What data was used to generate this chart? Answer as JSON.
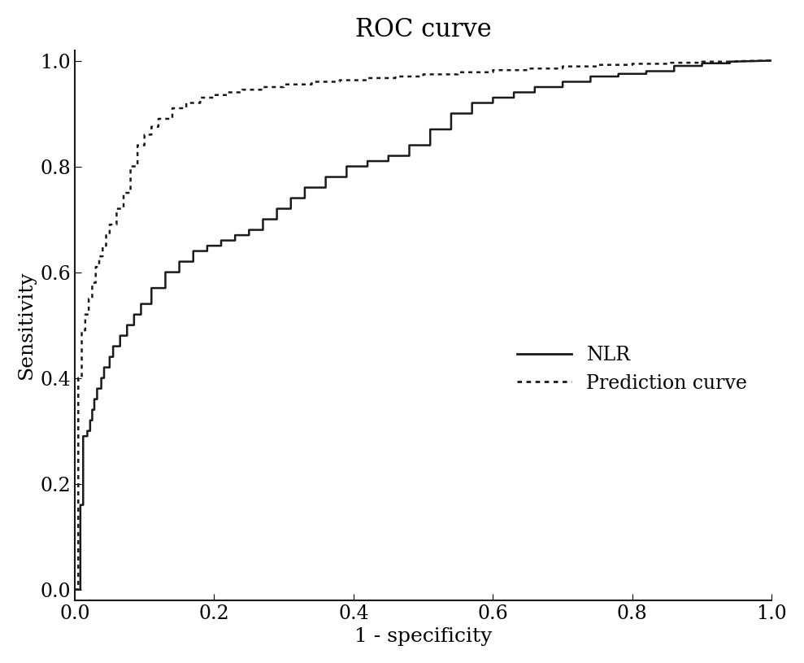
{
  "title": "ROC curve",
  "xlabel": "1 - specificity",
  "ylabel": "Sensitivity",
  "xlim": [
    0,
    1.0
  ],
  "ylim": [
    -0.02,
    1.02
  ],
  "title_fontsize": 22,
  "label_fontsize": 18,
  "tick_fontsize": 17,
  "legend_fontsize": 17,
  "background_color": "#ffffff",
  "curve_color": "#1a1a1a",
  "nlr_x": [
    0.0,
    0.008,
    0.008,
    0.012,
    0.012,
    0.018,
    0.018,
    0.022,
    0.022,
    0.025,
    0.025,
    0.028,
    0.028,
    0.032,
    0.032,
    0.038,
    0.038,
    0.042,
    0.042,
    0.05,
    0.05,
    0.055,
    0.055,
    0.065,
    0.065,
    0.075,
    0.075,
    0.085,
    0.085,
    0.095,
    0.095,
    0.11,
    0.11,
    0.13,
    0.13,
    0.15,
    0.15,
    0.17,
    0.17,
    0.19,
    0.19,
    0.21,
    0.21,
    0.23,
    0.23,
    0.25,
    0.25,
    0.27,
    0.27,
    0.29,
    0.29,
    0.31,
    0.31,
    0.33,
    0.33,
    0.36,
    0.36,
    0.39,
    0.39,
    0.42,
    0.42,
    0.45,
    0.45,
    0.48,
    0.48,
    0.51,
    0.51,
    0.54,
    0.54,
    0.57,
    0.57,
    0.6,
    0.6,
    0.63,
    0.63,
    0.66,
    0.66,
    0.7,
    0.7,
    0.74,
    0.74,
    0.78,
    0.78,
    0.82,
    0.82,
    0.86,
    0.86,
    0.9,
    0.9,
    0.94,
    0.94,
    1.0
  ],
  "nlr_y": [
    0.0,
    0.0,
    0.16,
    0.16,
    0.29,
    0.29,
    0.3,
    0.3,
    0.32,
    0.32,
    0.34,
    0.34,
    0.36,
    0.36,
    0.38,
    0.38,
    0.4,
    0.4,
    0.42,
    0.42,
    0.44,
    0.44,
    0.46,
    0.46,
    0.48,
    0.48,
    0.5,
    0.5,
    0.52,
    0.52,
    0.54,
    0.54,
    0.57,
    0.57,
    0.6,
    0.6,
    0.62,
    0.62,
    0.64,
    0.64,
    0.65,
    0.65,
    0.66,
    0.66,
    0.67,
    0.67,
    0.68,
    0.68,
    0.7,
    0.7,
    0.72,
    0.72,
    0.74,
    0.74,
    0.76,
    0.76,
    0.78,
    0.78,
    0.8,
    0.8,
    0.81,
    0.81,
    0.82,
    0.82,
    0.84,
    0.84,
    0.87,
    0.87,
    0.9,
    0.9,
    0.92,
    0.92,
    0.93,
    0.93,
    0.94,
    0.94,
    0.95,
    0.95,
    0.96,
    0.96,
    0.97,
    0.97,
    0.975,
    0.975,
    0.98,
    0.98,
    0.99,
    0.99,
    0.995,
    0.995,
    0.998,
    1.0
  ],
  "pred_x": [
    0.0,
    0.005,
    0.005,
    0.01,
    0.01,
    0.015,
    0.015,
    0.02,
    0.02,
    0.025,
    0.025,
    0.03,
    0.03,
    0.035,
    0.035,
    0.04,
    0.04,
    0.045,
    0.045,
    0.05,
    0.05,
    0.06,
    0.06,
    0.07,
    0.07,
    0.08,
    0.08,
    0.09,
    0.09,
    0.1,
    0.1,
    0.11,
    0.11,
    0.12,
    0.12,
    0.14,
    0.14,
    0.16,
    0.16,
    0.18,
    0.18,
    0.2,
    0.2,
    0.22,
    0.22,
    0.24,
    0.24,
    0.27,
    0.27,
    0.3,
    0.3,
    0.34,
    0.34,
    0.38,
    0.38,
    0.42,
    0.42,
    0.46,
    0.46,
    0.5,
    0.5,
    0.55,
    0.55,
    0.6,
    0.6,
    0.65,
    0.65,
    0.7,
    0.7,
    0.75,
    0.75,
    0.8,
    0.8,
    0.85,
    0.85,
    0.9,
    0.9,
    0.95,
    0.95,
    1.0
  ],
  "pred_y": [
    0.0,
    0.0,
    0.4,
    0.4,
    0.49,
    0.49,
    0.52,
    0.52,
    0.55,
    0.55,
    0.58,
    0.58,
    0.61,
    0.61,
    0.63,
    0.63,
    0.65,
    0.65,
    0.67,
    0.67,
    0.69,
    0.69,
    0.72,
    0.72,
    0.75,
    0.75,
    0.8,
    0.8,
    0.84,
    0.84,
    0.86,
    0.86,
    0.875,
    0.875,
    0.89,
    0.89,
    0.91,
    0.91,
    0.92,
    0.92,
    0.93,
    0.93,
    0.935,
    0.935,
    0.94,
    0.94,
    0.945,
    0.945,
    0.95,
    0.95,
    0.955,
    0.955,
    0.96,
    0.96,
    0.963,
    0.963,
    0.967,
    0.967,
    0.97,
    0.97,
    0.974,
    0.974,
    0.978,
    0.978,
    0.982,
    0.982,
    0.985,
    0.985,
    0.989,
    0.989,
    0.992,
    0.992,
    0.994,
    0.994,
    0.996,
    0.996,
    0.998,
    0.998,
    0.999,
    1.0
  ]
}
